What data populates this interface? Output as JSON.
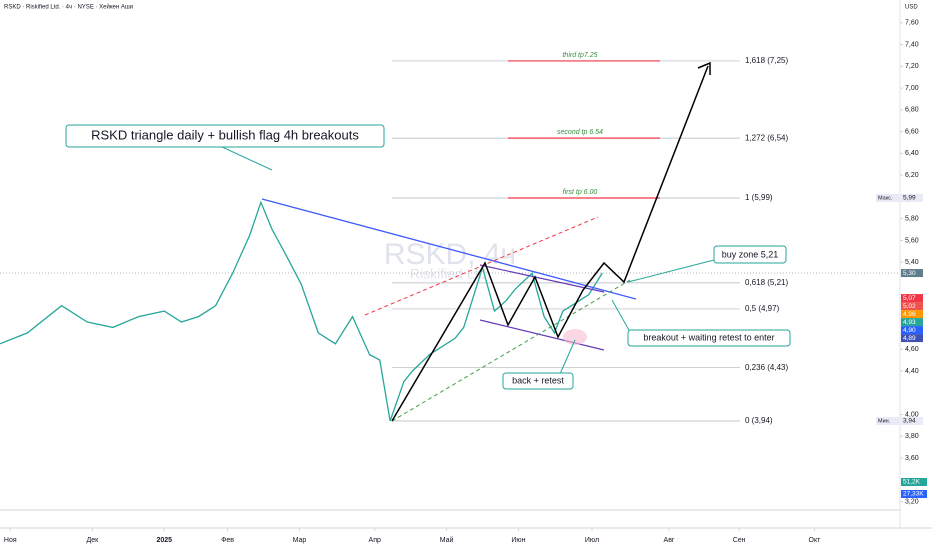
{
  "header": {
    "title": "RSKD · Riskified Ltd. · 4ч · NYSE · Хейкен Аши",
    "currency": "USD",
    "watermark": "RSKD, 4ч",
    "watermark_sub": "Riskified Ltd."
  },
  "chart_data": {
    "type": "line",
    "series": [
      {
        "name": "RSKD",
        "color": "#26a69a",
        "x": [
          -0.6,
          1,
          3,
          4.5,
          6,
          7.5,
          9,
          10,
          11,
          12,
          13,
          14,
          14.65,
          15.3,
          16,
          17,
          18,
          19,
          20,
          21,
          21.6,
          22.2,
          23,
          23.5,
          24.5,
          25,
          26,
          26.5,
          27.6,
          28.3,
          29,
          29.5,
          30.5,
          31.2,
          31.8,
          32.3,
          32.8,
          33.8,
          34.6
        ],
        "values": [
          4.65,
          4.75,
          5.0,
          4.85,
          4.8,
          4.9,
          4.95,
          4.85,
          4.9,
          5.0,
          5.3,
          5.65,
          5.95,
          5.7,
          5.5,
          5.2,
          4.75,
          4.65,
          4.9,
          4.55,
          4.5,
          3.94,
          4.3,
          4.4,
          4.55,
          4.6,
          4.7,
          4.8,
          5.35,
          4.95,
          5.05,
          5.15,
          5.3,
          4.9,
          4.75,
          4.95,
          5.0,
          5.1,
          5.3
        ]
      }
    ],
    "xlim": [
      -0.6,
      52
    ],
    "xticks": [
      {
        "value": 0,
        "label": "Ноя"
      },
      {
        "value": 4.8,
        "label": "Дек"
      },
      {
        "value": 9,
        "label": "2025"
      },
      {
        "value": 12.7,
        "label": "Фев"
      },
      {
        "value": 16.9,
        "label": "Мар"
      },
      {
        "value": 21.3,
        "label": "Апр"
      },
      {
        "value": 25.5,
        "label": "Май"
      },
      {
        "value": 29.7,
        "label": "Июн"
      },
      {
        "value": 34,
        "label": "Июл"
      },
      {
        "value": 38.5,
        "label": "Авг"
      },
      {
        "value": 42.6,
        "label": "Сен"
      },
      {
        "value": 47,
        "label": "Окт"
      }
    ],
    "ylim": [
      3.03,
      7.81
    ],
    "yticks": [
      {
        "value": 3.2,
        "label": "3,20"
      },
      {
        "value": 3.6,
        "label": "3,60"
      },
      {
        "value": 3.8,
        "label": "3,80"
      },
      {
        "value": 4.0,
        "label": "4,00"
      },
      {
        "value": 4.4,
        "label": "4,40"
      },
      {
        "value": 4.6,
        "label": "4,60"
      },
      {
        "value": 5.4,
        "label": "5,40"
      },
      {
        "value": 5.6,
        "label": "5,60"
      },
      {
        "value": 5.8,
        "label": "5,80"
      },
      {
        "value": 6.2,
        "label": "6,20"
      },
      {
        "value": 6.4,
        "label": "6,40"
      },
      {
        "value": 6.6,
        "label": "6,60"
      },
      {
        "value": 6.8,
        "label": "6,80"
      },
      {
        "value": 7.0,
        "label": "7,00"
      },
      {
        "value": 7.2,
        "label": "7,20"
      },
      {
        "value": 7.4,
        "label": "7,40"
      },
      {
        "value": 7.6,
        "label": "7,60"
      }
    ],
    "fib_levels": [
      {
        "value": 7.25,
        "label": "1,618 (7,25)"
      },
      {
        "value": 6.54,
        "label": "1,272 (6,54)"
      },
      {
        "value": 5.99,
        "label": "1 (5,99)"
      },
      {
        "value": 5.21,
        "label": "0,618 (5,21)"
      },
      {
        "value": 4.97,
        "label": "0,5 (4,97)"
      },
      {
        "value": 4.43,
        "label": "0,236 (4,43)"
      },
      {
        "value": 3.94,
        "label": "0 (3,94)"
      }
    ],
    "targets": [
      "third tp7.25",
      "second tp 6.54",
      "first tp 6.00"
    ],
    "max_badge": {
      "name": "Макс.",
      "value": 5.99,
      "label": "5,99"
    },
    "min_badge": {
      "name": "Мин.",
      "value": 3.94,
      "label": "3,94"
    },
    "price_badges": [
      {
        "value": 5.3,
        "label": "5,30",
        "color": "#607d8b"
      },
      {
        "value": 5.07,
        "label": "5,07",
        "color": "#f23645"
      },
      {
        "value": 5.02,
        "label": "5,02",
        "color": "#ef5350"
      },
      {
        "value": 4.96,
        "label": "4,96",
        "color": "#ff9800"
      },
      {
        "value": 4.93,
        "label": "4,93",
        "color": "#26a69a"
      },
      {
        "value": 4.9,
        "label": "4,90",
        "color": "#2962ff"
      },
      {
        "value": 4.89,
        "label": "4,89",
        "color": "#3f51b5"
      }
    ],
    "volume_badges": [
      {
        "label": "51,2K",
        "color": "#26a69a"
      },
      {
        "label": "27,33K",
        "color": "#2962ff"
      }
    ],
    "annotations": [
      "RSKD triangle daily + bullish flag 4h breakouts",
      "buy zone 5,21",
      "breakout + waiting retest to enter",
      "back + retest"
    ]
  }
}
